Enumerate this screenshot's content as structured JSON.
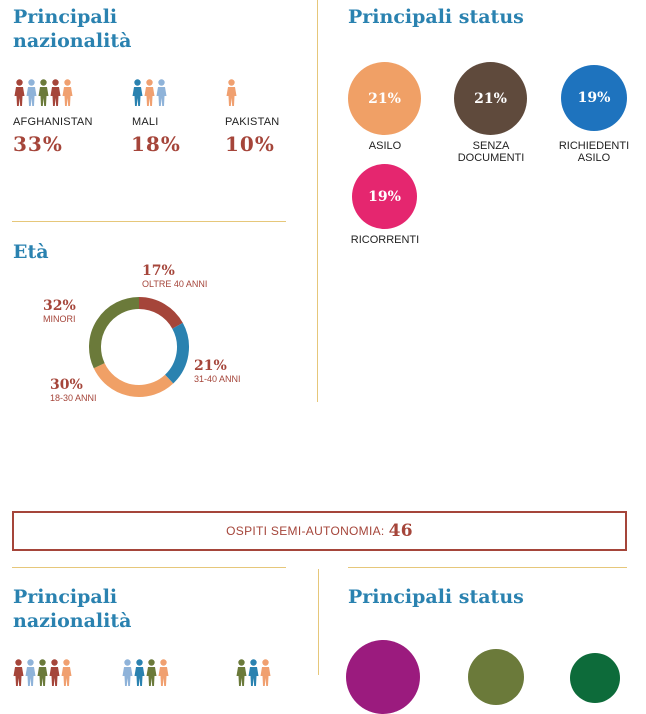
{
  "top": {
    "nationalities": {
      "title_line1": "Principali",
      "title_line2": "nazionalità",
      "items": [
        {
          "country": "AFGHANISTAN",
          "pct": "33%",
          "icons": [
            "#a5453a",
            "#8fb3d9",
            "#6b7a3a",
            "#a5453a",
            "#f0a070"
          ]
        },
        {
          "country": "MALI",
          "pct": "18%",
          "icons": [
            "#2a82b0",
            "#f0a070",
            "#8fb3d9"
          ]
        },
        {
          "country": "PAKISTAN",
          "pct": "10%",
          "icons": [
            "#f0a070"
          ]
        }
      ]
    },
    "status": {
      "title": "Principali status",
      "items": [
        {
          "pct": "21%",
          "label_line1": "ASILO",
          "label_line2": "",
          "color": "#f0a066"
        },
        {
          "pct": "21%",
          "label_line1": "SENZA",
          "label_line2": "DOCUMENTI",
          "color": "#5f4a3c"
        },
        {
          "pct": "19%",
          "label_line1": "RICHIEDENTI",
          "label_line2": "ASILO",
          "color": "#1e73be"
        },
        {
          "pct": "19%",
          "label_line1": "RICORRENTI",
          "label_line2": "",
          "color": "#e5266f"
        }
      ]
    },
    "age": {
      "title": "Età",
      "labels": [
        {
          "pct": "17%",
          "label": "OLTRE 40 ANNI"
        },
        {
          "pct": "21%",
          "label": "31-40 ANNI"
        },
        {
          "pct": "30%",
          "label": "18-30 ANNI"
        },
        {
          "pct": "32%",
          "label": "MINORI"
        }
      ]
    }
  },
  "banner": {
    "label": "OSPITI SEMI-AUTONOMIA:",
    "value": "46"
  },
  "bottom": {
    "nationalities": {
      "title_line1": "Principali",
      "title_line2": "nazionalità"
    },
    "status": {
      "title": "Principali status",
      "circles": [
        {
          "color": "#9b1b7e"
        },
        {
          "color": "#6b7a3a"
        },
        {
          "color": "#0d6b3a"
        }
      ]
    },
    "people_groups": [
      [
        "#a5453a",
        "#8fb3d9",
        "#6b7a3a",
        "#a5453a",
        "#f0a070"
      ],
      [
        "#8fb3d9",
        "#2a82b0",
        "#6b7a3a",
        "#f0a070"
      ],
      [
        "#6b7a3a",
        "#2a82b0",
        "#f0a070"
      ]
    ]
  },
  "chart_data": {
    "type": "pie",
    "title": "Età",
    "categories": [
      "OLTRE 40 ANNI",
      "31-40 ANNI",
      "18-30 ANNI",
      "MINORI"
    ],
    "values": [
      17,
      21,
      30,
      32
    ],
    "colors": [
      "#a5453a",
      "#2a82b0",
      "#f0a066",
      "#6b7a3a"
    ]
  }
}
